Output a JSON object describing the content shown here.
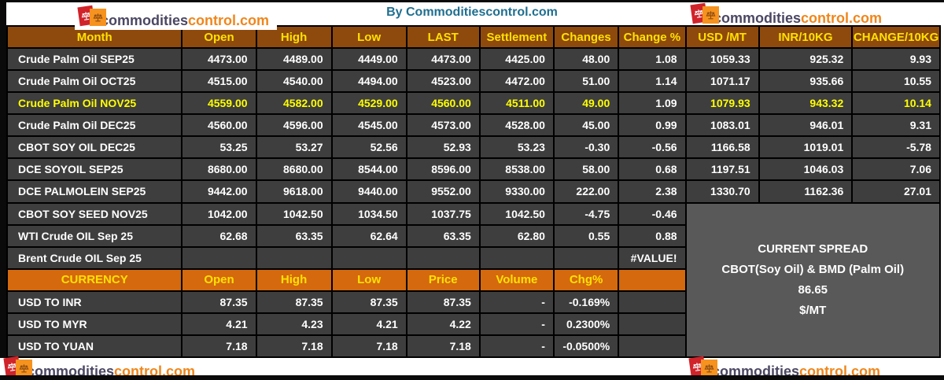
{
  "brand": {
    "byline": "By Commoditiescontrol.com",
    "logo_dark": "commodities",
    "logo_orange": "control.com",
    "icons": {
      "logo": "balance-scales-icon"
    }
  },
  "colors": {
    "header_brown": "#8e4a0d",
    "currency_orange": "#d4690e",
    "row_dark": "#3e3e3e",
    "panel_gray": "#595959",
    "header_yellow": "#ffe100",
    "highlight_yellow": "#ffff00",
    "byline_teal": "#1f6f8f",
    "logo_red": "#d1232a",
    "logo_orange_sq": "#f6921e"
  },
  "futures_table": {
    "headers": [
      "Month",
      "Open",
      "High",
      "Low",
      "LAST",
      "Settlement",
      "Changes",
      "Change %",
      "USD /MT",
      "INR/10KG",
      "CHANGE/10KG"
    ],
    "rows": [
      {
        "highlight": false,
        "cells": [
          "Crude Palm Oil SEP25",
          "4473.00",
          "4489.00",
          "4449.00",
          "4473.00",
          "4425.00",
          "48.00",
          "1.08",
          "1059.33",
          "925.32",
          "9.93"
        ]
      },
      {
        "highlight": false,
        "cells": [
          "Crude Palm Oil OCT25",
          "4515.00",
          "4540.00",
          "4494.00",
          "4523.00",
          "4472.00",
          "51.00",
          "1.14",
          "1071.17",
          "935.66",
          "10.55"
        ]
      },
      {
        "highlight": true,
        "cells": [
          "Crude Palm Oil NOV25",
          "4559.00",
          "4582.00",
          "4529.00",
          "4560.00",
          "4511.00",
          "49.00",
          "1.09",
          "1079.93",
          "943.32",
          "10.14"
        ]
      },
      {
        "highlight": false,
        "cells": [
          "Crude Palm Oil DEC25",
          "4560.00",
          "4596.00",
          "4545.00",
          "4573.00",
          "4528.00",
          "45.00",
          "0.99",
          "1083.01",
          "946.01",
          "9.31"
        ]
      },
      {
        "highlight": false,
        "cells": [
          "CBOT SOY OIL DEC25",
          "53.25",
          "53.27",
          "52.56",
          "52.93",
          "53.23",
          "-0.30",
          "-0.56",
          "1166.58",
          "1019.01",
          "-5.78"
        ]
      },
      {
        "highlight": false,
        "cells": [
          "DCE SOYOIL SEP25",
          "8680.00",
          "8680.00",
          "8544.00",
          "8596.00",
          "8538.00",
          "58.00",
          "0.68",
          "1197.51",
          "1046.03",
          "7.06"
        ]
      },
      {
        "highlight": false,
        "cells": [
          "DCE PALMOLEIN SEP25",
          "9442.00",
          "9618.00",
          "9440.00",
          "9552.00",
          "9330.00",
          "222.00",
          "2.38",
          "1330.70",
          "1162.36",
          "27.01"
        ]
      },
      {
        "highlight": false,
        "cells": [
          "CBOT SOY SEED NOV25",
          "1042.00",
          "1042.50",
          "1034.50",
          "1037.75",
          "1042.50",
          "-4.75",
          "-0.46"
        ]
      },
      {
        "highlight": false,
        "cells": [
          "WTI Crude OIL Sep 25",
          "62.68",
          "63.35",
          "62.64",
          "63.35",
          "62.80",
          "0.55",
          "0.88"
        ]
      },
      {
        "highlight": false,
        "cells": [
          "Brent Crude OIL Sep 25",
          "",
          "",
          "",
          "",
          "",
          "",
          "#VALUE!"
        ]
      }
    ]
  },
  "currency_table": {
    "headers": [
      "CURRENCY",
      "Open",
      "High",
      "Low",
      "Price",
      "Volume",
      "Chg%"
    ],
    "rows": [
      {
        "cells": [
          "USD TO INR",
          "87.35",
          "87.35",
          "87.35",
          "87.35",
          "-",
          "-0.169%",
          ""
        ]
      },
      {
        "cells": [
          "USD TO MYR",
          "4.21",
          "4.23",
          "4.21",
          "4.22",
          "-",
          "0.2300%",
          ""
        ]
      },
      {
        "cells": [
          "USD TO YUAN",
          "7.18",
          "7.18",
          "7.18",
          "7.18",
          "-",
          "-0.0500%",
          ""
        ]
      }
    ]
  },
  "spread_panel": {
    "lines": [
      "CURRENT SPREAD",
      "CBOT(Soy Oil) & BMD (Palm Oil)",
      "86.65",
      "$/MT"
    ]
  }
}
